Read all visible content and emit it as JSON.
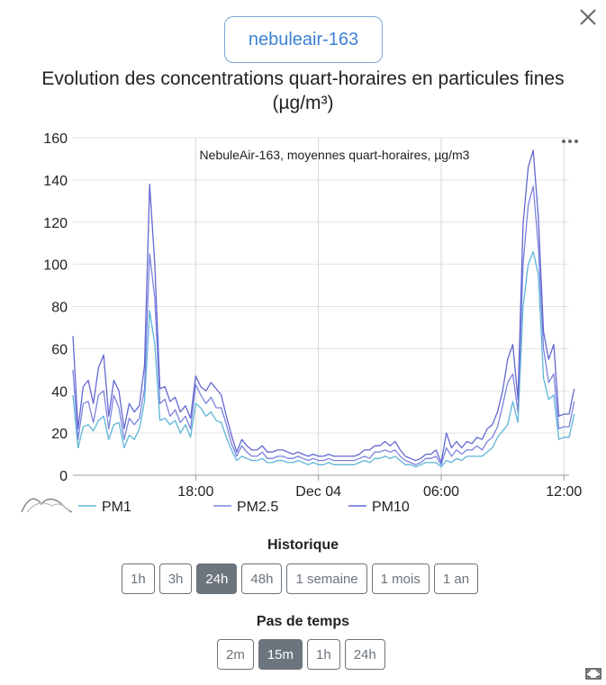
{
  "sensor_button": "nebuleair-163",
  "title_line1": "Evolution des concentrations quart-horaires en particules fines",
  "title_line2": "(µg/m³)",
  "historique": {
    "title": "Historique",
    "buttons": [
      "1h",
      "3h",
      "24h",
      "48h",
      "1 semaine",
      "1 mois",
      "1 an"
    ],
    "active": "24h"
  },
  "pas_de_temps": {
    "title": "Pas de temps",
    "buttons": [
      "2m",
      "15m",
      "1h",
      "24h"
    ],
    "active": "15m"
  },
  "icons": {
    "close": "close-icon",
    "menu": "ellipsis-icon",
    "series_toggle": "area-chart-icon",
    "expand": "expand-icon"
  },
  "chart_data": {
    "type": "line",
    "title": "NebuleAir-163, moyennes quart-horaires, µg/m3",
    "ylim": [
      0,
      160
    ],
    "yticks": [
      0,
      20,
      40,
      60,
      80,
      100,
      120,
      140,
      160
    ],
    "x_range_hours": [
      12,
      36.25
    ],
    "x_ticks": [
      {
        "h": 18,
        "label": "18:00"
      },
      {
        "h": 24,
        "label": "Dec 04"
      },
      {
        "h": 30,
        "label": "06:00"
      },
      {
        "h": 36,
        "label": "12:00"
      }
    ],
    "grid": true,
    "legend_position": "bottom-left",
    "x_start_hour": 12,
    "x_step_hours": 0.25,
    "series": [
      {
        "name": "PM1",
        "color": "#5eb5d8",
        "values": [
          38,
          13,
          23,
          24,
          21,
          26,
          28,
          17,
          24,
          25,
          13,
          19,
          17,
          22,
          35,
          78,
          62,
          26,
          27,
          24,
          26,
          20,
          24,
          18,
          34,
          32,
          28,
          30,
          26,
          25,
          18,
          12,
          7,
          9,
          8,
          7,
          7,
          8,
          6,
          6,
          7,
          7,
          6,
          6,
          7,
          6,
          5,
          6,
          5,
          5,
          6,
          5,
          5,
          5,
          5,
          5,
          6,
          7,
          6,
          8,
          8,
          9,
          8,
          9,
          7,
          5,
          5,
          4,
          5,
          6,
          6,
          6,
          4,
          7,
          6,
          8,
          7,
          9,
          9,
          9,
          9,
          11,
          13,
          18,
          21,
          24,
          35,
          25,
          80,
          100,
          106,
          95,
          46,
          36,
          38,
          17,
          18,
          18,
          29
        ]
      },
      {
        "name": "PM2.5",
        "color": "#7b84de",
        "values": [
          50,
          17,
          34,
          35,
          25,
          38,
          40,
          22,
          38,
          32,
          17,
          27,
          24,
          27,
          41,
          105,
          84,
          34,
          36,
          28,
          31,
          25,
          28,
          22,
          43,
          38,
          34,
          37,
          32,
          32,
          24,
          15,
          9,
          14,
          11,
          9,
          9,
          11,
          8,
          8,
          9,
          9,
          8,
          8,
          9,
          8,
          7,
          8,
          7,
          7,
          8,
          7,
          7,
          7,
          7,
          7,
          8,
          9,
          8,
          11,
          11,
          12,
          11,
          12,
          9,
          7,
          6,
          5,
          6,
          8,
          8,
          9,
          5,
          13,
          9,
          12,
          10,
          12,
          12,
          14,
          12,
          16,
          18,
          23,
          33,
          44,
          48,
          30,
          100,
          128,
          137,
          108,
          60,
          44,
          48,
          22,
          23,
          23,
          35
        ]
      },
      {
        "name": "PM10",
        "color": "#6367d1",
        "values": [
          66,
          22,
          42,
          45,
          34,
          51,
          57,
          28,
          45,
          40,
          22,
          34,
          30,
          33,
          52,
          138,
          100,
          41,
          42,
          35,
          37,
          30,
          33,
          27,
          47,
          42,
          40,
          44,
          41,
          38,
          28,
          19,
          11,
          17,
          14,
          12,
          12,
          14,
          11,
          11,
          12,
          12,
          11,
          10,
          11,
          10,
          9,
          10,
          9,
          9,
          10,
          9,
          9,
          9,
          9,
          9,
          10,
          12,
          12,
          14,
          14,
          16,
          14,
          16,
          12,
          9,
          8,
          7,
          8,
          10,
          10,
          12,
          6,
          20,
          13,
          16,
          13,
          16,
          15,
          18,
          17,
          22,
          24,
          30,
          40,
          55,
          62,
          36,
          119,
          146,
          154,
          122,
          68,
          55,
          62,
          28,
          29,
          29,
          41
        ]
      }
    ]
  }
}
